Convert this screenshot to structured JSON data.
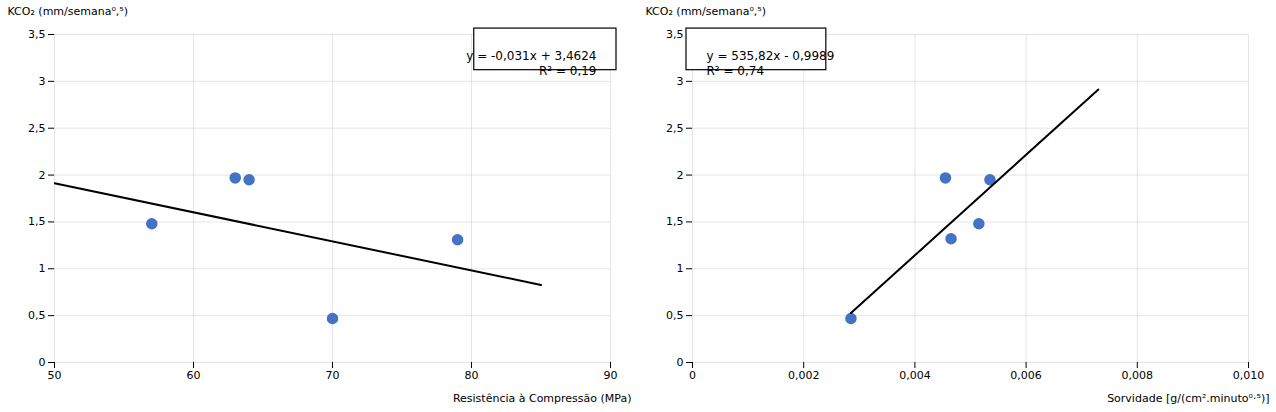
{
  "chart_data": [
    {
      "type": "scatter",
      "xlabel": "Resistência à Compressão (MPa)",
      "ylabel": "KCO₂ (mm/semana⁰,⁵)",
      "series": [
        {
          "type": "scatter",
          "color": "#4472C4",
          "x": [
            57,
            63,
            64,
            70,
            79
          ],
          "values": [
            1.48,
            1.97,
            1.95,
            0.47,
            1.31
          ]
        },
        {
          "type": "line",
          "color": "black",
          "x": [
            50,
            85
          ],
          "values": [
            1.9124,
            0.8274
          ]
        }
      ],
      "annotations": [
        "y = -0,031x + 3,4624",
        "R² = 0,19"
      ],
      "xlim": [
        50,
        90
      ],
      "xticks": [
        50,
        60,
        70,
        80,
        90
      ],
      "ylim": [
        0,
        3.5
      ],
      "yticks": [
        0,
        {
          "value": 0.5,
          "label": "0,5"
        },
        1,
        {
          "value": 1.5,
          "label": "1,5"
        },
        2,
        {
          "value": 2.5,
          "label": "2,5"
        },
        3,
        {
          "value": 3.5,
          "label": "3,5"
        }
      ],
      "grid": true
    },
    {
      "type": "scatter",
      "xlabel": "Sorvidade [g/(cm².minuto⁰⋅⁵)]",
      "ylabel": "KCO₂ (mm/semana⁰,⁵)",
      "series": [
        {
          "type": "scatter",
          "color": "#4472C4",
          "x": [
            0.00285,
            0.00455,
            0.00465,
            0.00515,
            0.00535
          ],
          "values": [
            0.47,
            1.97,
            1.32,
            1.48,
            1.95
          ]
        },
        {
          "type": "line",
          "color": "black",
          "x": [
            0.00285,
            0.0073
          ],
          "values": [
            0.528187,
            2.912586
          ]
        }
      ],
      "annotations": [
        "y = 535,82x - 0,9989",
        "R² = 0,74"
      ],
      "xlim": [
        0,
        0.01
      ],
      "xticks": [
        0,
        {
          "value": 0.002,
          "label": "0,002"
        },
        {
          "value": 0.004,
          "label": "0,004"
        },
        {
          "value": 0.006,
          "label": "0,006"
        },
        {
          "value": 0.008,
          "label": "0,008"
        },
        {
          "value": 0.01,
          "label": "0,010"
        }
      ],
      "ylim": [
        0,
        3.5
      ],
      "yticks": [
        0,
        {
          "value": 0.5,
          "label": "0,5"
        },
        1,
        {
          "value": 1.5,
          "label": "1,5"
        },
        2,
        {
          "value": 2.5,
          "label": "2,5"
        },
        3,
        {
          "value": 3.5,
          "label": "3,5"
        }
      ],
      "grid": true
    }
  ]
}
